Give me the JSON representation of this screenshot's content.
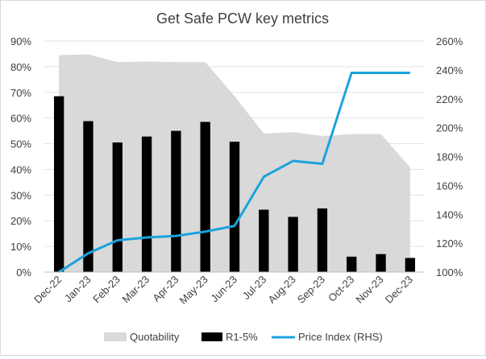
{
  "chart_data": {
    "type": "bar",
    "title": "Get Safe PCW key metrics",
    "categories": [
      "Dec-22",
      "Jan-23",
      "Feb-23",
      "Mar-23",
      "Apr-23",
      "May-23",
      "Jun-23",
      "Jul-23",
      "Aug-23",
      "Sep-23",
      "Oct-23",
      "Nov-23",
      "Dec-23"
    ],
    "y_left": {
      "ticks": [
        "0%",
        "10%",
        "20%",
        "30%",
        "40%",
        "50%",
        "60%",
        "70%",
        "80%",
        "90%"
      ],
      "ylim": [
        0,
        90
      ]
    },
    "y_right": {
      "ticks": [
        "100%",
        "120%",
        "140%",
        "160%",
        "180%",
        "200%",
        "220%",
        "240%",
        "260%"
      ],
      "ylim": [
        100,
        260
      ]
    },
    "series": [
      {
        "name": "Quotability",
        "type": "area",
        "axis": "left",
        "color": "#d9d9d9",
        "values": [
          84.5,
          84.8,
          81.8,
          82.0,
          81.8,
          81.8,
          68.5,
          54.0,
          54.5,
          53.0,
          53.8,
          53.8,
          40.8
        ]
      },
      {
        "name": "R1-5%",
        "type": "bar",
        "axis": "left",
        "color": "#000000",
        "values": [
          68.5,
          58.8,
          50.5,
          52.8,
          55.0,
          58.5,
          50.8,
          24.3,
          21.5,
          24.8,
          6.0,
          7.0,
          5.5
        ]
      },
      {
        "name": "Price Index (RHS)",
        "type": "line",
        "axis": "right",
        "color": "#1aa3de",
        "values": [
          100,
          113,
          122,
          124,
          125,
          128,
          132,
          166,
          177,
          175,
          238,
          238,
          238
        ]
      }
    ],
    "legend_position": "bottom",
    "grid": "horizontal"
  }
}
